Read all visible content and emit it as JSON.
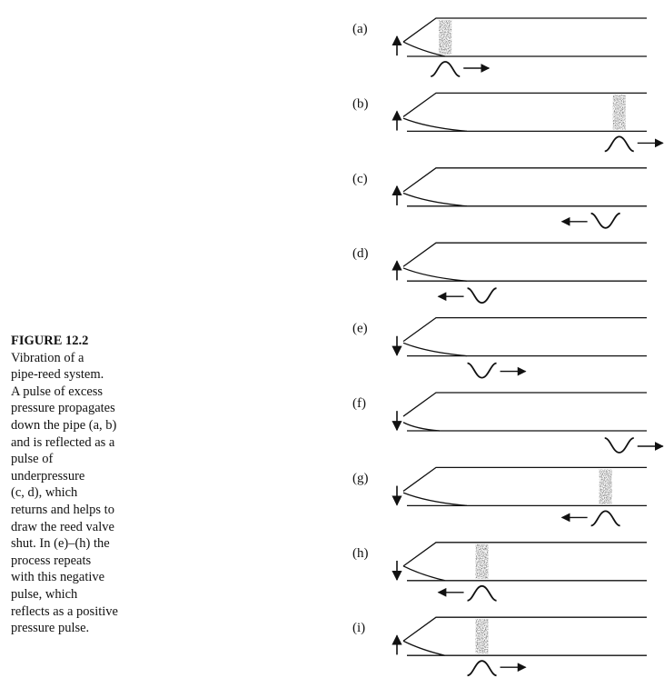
{
  "caption": {
    "title": "FIGURE 12.2",
    "lines": [
      "Vibration of a",
      "pipe-reed system.",
      "A pulse of excess",
      "pressure propagates",
      "down the pipe (a, b)",
      "and is reflected as a",
      "pulse of",
      "underpressure",
      "(c, d), which",
      "returns and helps to",
      "draw the reed valve",
      "shut. In (e)–(h) the",
      "process repeats",
      "with this negative",
      "pulse, which",
      "reflects as a positive",
      "pressure pulse."
    ]
  },
  "panels": [
    {
      "label": "(a)",
      "reed": "up",
      "reed_state": "open",
      "pulse": "positive",
      "direction": "right",
      "pulse_position": 0.12,
      "shaded": true
    },
    {
      "label": "(b)",
      "reed": "up",
      "reed_state": "closing",
      "pulse": "positive",
      "direction": "right",
      "pulse_position": 0.88,
      "shaded": true
    },
    {
      "label": "(c)",
      "reed": "up",
      "reed_state": "closing",
      "pulse": "negative",
      "direction": "left",
      "pulse_position": 0.82,
      "shaded": false
    },
    {
      "label": "(d)",
      "reed": "up",
      "reed_state": "closing",
      "pulse": "negative",
      "direction": "left",
      "pulse_position": 0.28,
      "shaded": false
    },
    {
      "label": "(e)",
      "reed": "down",
      "reed_state": "closing",
      "pulse": "negative",
      "direction": "right",
      "pulse_position": 0.28,
      "shaded": false
    },
    {
      "label": "(f)",
      "reed": "down",
      "reed_state": "closed",
      "pulse": "negative",
      "direction": "right",
      "pulse_position": 0.88,
      "shaded": false
    },
    {
      "label": "(g)",
      "reed": "down",
      "reed_state": "closing",
      "pulse": "positive",
      "direction": "left",
      "pulse_position": 0.82,
      "shaded": true
    },
    {
      "label": "(h)",
      "reed": "down",
      "reed_state": "open",
      "pulse": "positive",
      "direction": "left",
      "pulse_position": 0.28,
      "shaded": true
    },
    {
      "label": "(i)",
      "reed": "up",
      "reed_state": "open",
      "pulse": "positive",
      "direction": "right",
      "pulse_position": 0.28,
      "shaded": true
    }
  ],
  "colors": {
    "ink": "#111111",
    "shade": "#555555",
    "background": "#ffffff"
  }
}
